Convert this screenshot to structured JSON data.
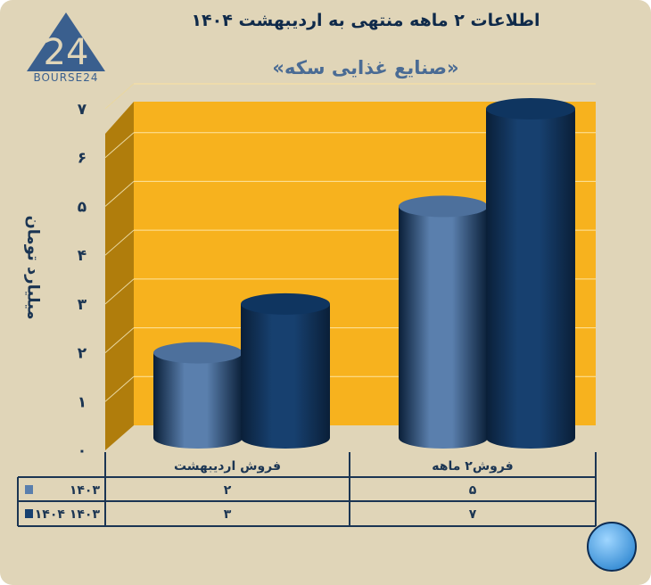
{
  "title": "اطلاعات ۲ ماهه منتهی به اردیبهشت ۱۴۰۴",
  "subtitle": "«صنایع غذایی سکه»",
  "logo_text": "BOURSE24",
  "chart_data": {
    "type": "bar",
    "title": "اطلاعات ۲ ماهه منتهی به اردیبهشت ۱۴۰۴",
    "subtitle": "«صنایع غذایی سکه»",
    "ylabel": "میلیارد تومان",
    "ylim": [
      0,
      7
    ],
    "yticks": [
      "۰",
      "۱",
      "۲",
      "۳",
      "۴",
      "۵",
      "۶",
      "۷"
    ],
    "categories": [
      "فروش اردیبهشت",
      "فروش۲  ماهه"
    ],
    "series": [
      {
        "name": "۱۴۰۳",
        "values": [
          2,
          5
        ],
        "labels": [
          "۲",
          "۵"
        ],
        "color": "#5a7fad"
      },
      {
        "name": "۱۴۰۳ ۱۴۰۴",
        "values": [
          3,
          7
        ],
        "labels": [
          "۳",
          "۷"
        ],
        "color": "#17406f"
      }
    ],
    "grid": true,
    "legend": "data-table",
    "colors": {
      "wall": "#f7b21e",
      "side_wall": "#b07d0c",
      "background": "#e0d5b8",
      "table_lines": "#1b3553"
    }
  }
}
